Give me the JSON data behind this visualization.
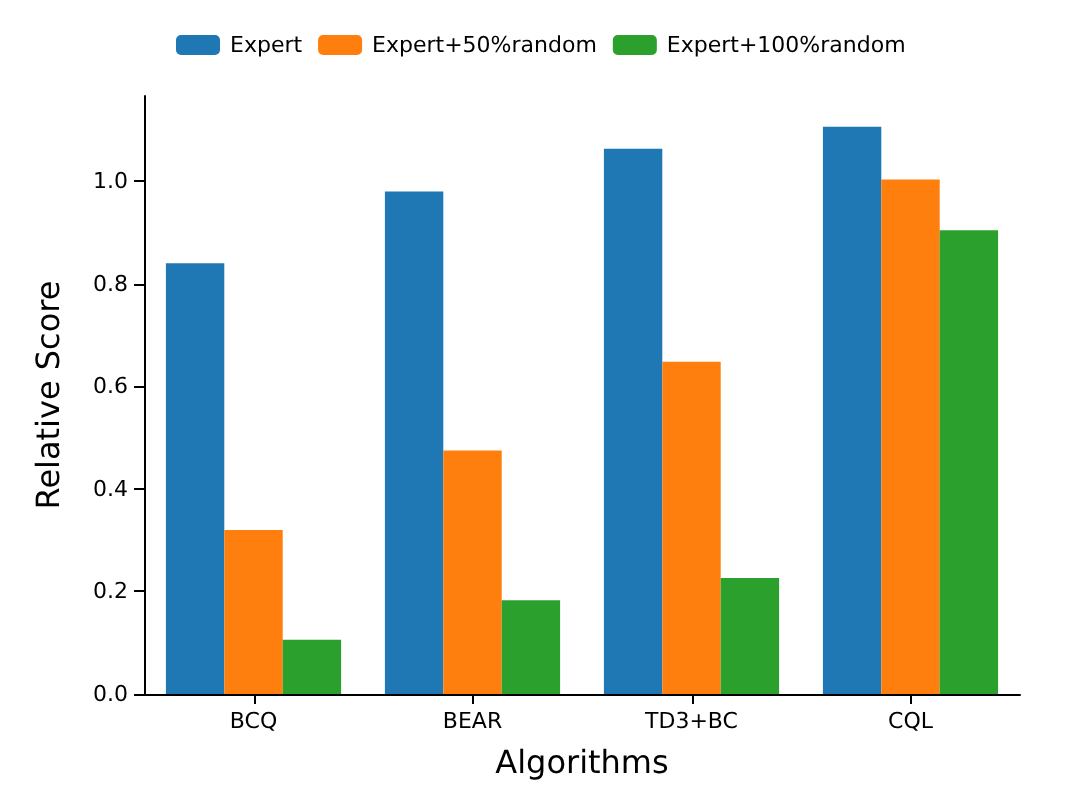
{
  "chart_data": {
    "type": "bar",
    "xlabel": "Algorithms",
    "ylabel": "Relative Score",
    "categories": [
      "BCQ",
      "BEAR",
      "TD3+BC",
      "CQL"
    ],
    "series": [
      {
        "name": "Expert",
        "color": "#1f77b4",
        "values": [
          0.84,
          0.98,
          1.063,
          1.106
        ]
      },
      {
        "name": "Expert+50%random",
        "color": "#ff7f0e",
        "values": [
          0.32,
          0.475,
          0.648,
          1.003
        ]
      },
      {
        "name": "Expert+100%random",
        "color": "#2ca02c",
        "values": [
          0.106,
          0.183,
          0.226,
          0.904
        ]
      }
    ],
    "ylim": [
      0,
      1.166
    ],
    "yticks": [
      {
        "value": 0,
        "label": "0.0"
      },
      0.2,
      0.4,
      0.6,
      0.8,
      {
        "value": 1,
        "label": "1.0"
      }
    ],
    "grid": false,
    "legend": "top left"
  }
}
